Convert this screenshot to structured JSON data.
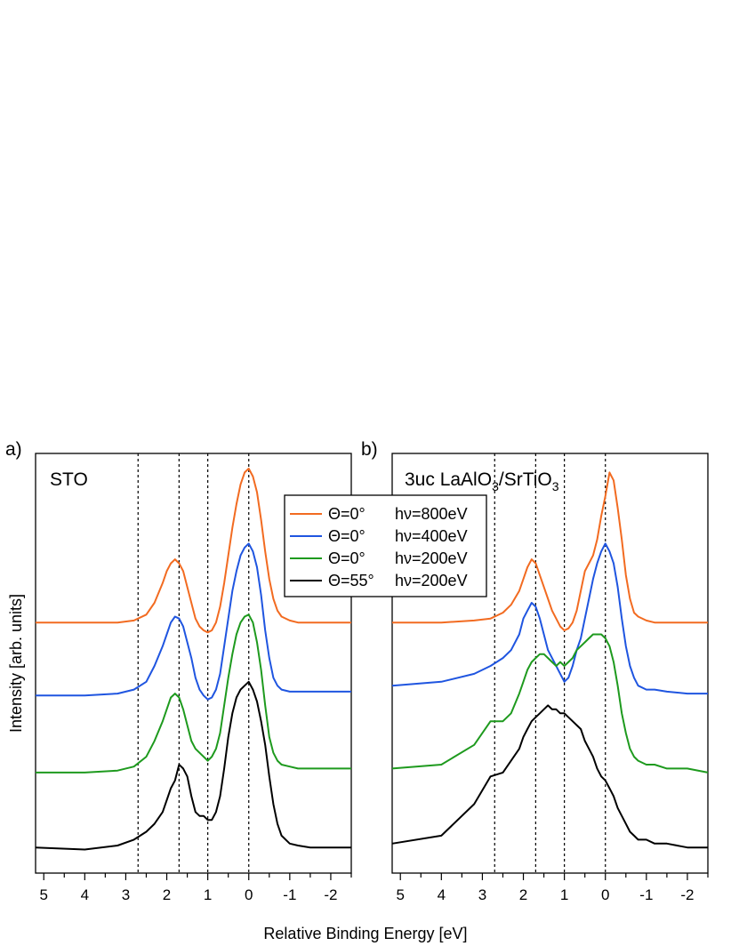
{
  "chart_data": [
    {
      "type": "line",
      "panel_letter": "a)",
      "title": "STO",
      "xlabel": "Relative Binding Energy [eV]",
      "ylabel": "Intensity [arb. units]",
      "xlim": [
        5.2,
        -2.5
      ],
      "x_reversed": true,
      "xticks": [
        5,
        4,
        3,
        2,
        1,
        0,
        -1,
        -2
      ],
      "xtick_labels": [
        "5",
        "4",
        "3",
        "2",
        "1",
        "0",
        "-1",
        "-2"
      ],
      "ylim": [
        0,
        1.0
      ],
      "yticks_shown": false,
      "vlines": [
        2.7,
        1.7,
        1.0,
        0.0
      ],
      "series": [
        {
          "name": "Θ=0°   hν=800eV",
          "color": "#F26B21",
          "x": [
            5.2,
            4.0,
            3.2,
            2.8,
            2.5,
            2.3,
            2.1,
            2.0,
            1.9,
            1.8,
            1.7,
            1.6,
            1.5,
            1.4,
            1.3,
            1.2,
            1.1,
            1.0,
            0.9,
            0.8,
            0.7,
            0.6,
            0.5,
            0.4,
            0.3,
            0.2,
            0.1,
            0.0,
            -0.1,
            -0.2,
            -0.3,
            -0.4,
            -0.5,
            -0.6,
            -0.7,
            -0.8,
            -1.0,
            -1.2,
            -1.5,
            -2.0,
            -2.5
          ],
          "y": [
            0.61,
            0.61,
            0.61,
            0.615,
            0.63,
            0.66,
            0.71,
            0.74,
            0.76,
            0.77,
            0.76,
            0.74,
            0.7,
            0.66,
            0.62,
            0.6,
            0.59,
            0.585,
            0.59,
            0.61,
            0.65,
            0.71,
            0.78,
            0.85,
            0.91,
            0.96,
            0.99,
            1.0,
            0.98,
            0.94,
            0.87,
            0.79,
            0.72,
            0.67,
            0.64,
            0.625,
            0.615,
            0.61,
            0.61,
            0.61,
            0.61
          ]
        },
        {
          "name": "Θ=0°   hν=400eV",
          "color": "#1F55E0",
          "x": [
            5.2,
            4.0,
            3.2,
            2.8,
            2.5,
            2.3,
            2.1,
            2.0,
            1.9,
            1.8,
            1.7,
            1.6,
            1.5,
            1.4,
            1.3,
            1.2,
            1.1,
            1.0,
            0.9,
            0.8,
            0.7,
            0.6,
            0.5,
            0.4,
            0.3,
            0.2,
            0.1,
            0.0,
            -0.1,
            -0.2,
            -0.3,
            -0.4,
            -0.5,
            -0.6,
            -0.7,
            -0.8,
            -1.0,
            -1.2,
            -1.5,
            -2.0,
            -2.5
          ],
          "y": [
            0.425,
            0.425,
            0.43,
            0.44,
            0.46,
            0.5,
            0.55,
            0.58,
            0.61,
            0.625,
            0.62,
            0.6,
            0.56,
            0.52,
            0.47,
            0.44,
            0.425,
            0.415,
            0.42,
            0.44,
            0.48,
            0.55,
            0.62,
            0.69,
            0.74,
            0.78,
            0.8,
            0.81,
            0.79,
            0.75,
            0.68,
            0.59,
            0.52,
            0.47,
            0.45,
            0.44,
            0.435,
            0.435,
            0.435,
            0.435,
            0.435
          ]
        },
        {
          "name": "Θ=0°   hν=200eV",
          "color": "#1E9A1E",
          "x": [
            5.2,
            4.0,
            3.2,
            2.8,
            2.5,
            2.3,
            2.1,
            2.0,
            1.9,
            1.8,
            1.7,
            1.6,
            1.5,
            1.4,
            1.3,
            1.2,
            1.1,
            1.0,
            0.9,
            0.8,
            0.7,
            0.6,
            0.5,
            0.4,
            0.3,
            0.2,
            0.1,
            0.0,
            -0.1,
            -0.2,
            -0.3,
            -0.4,
            -0.5,
            -0.6,
            -0.7,
            -0.8,
            -1.0,
            -1.2,
            -1.5,
            -2.0,
            -2.5
          ],
          "y": [
            0.23,
            0.23,
            0.235,
            0.245,
            0.27,
            0.31,
            0.36,
            0.39,
            0.42,
            0.43,
            0.42,
            0.39,
            0.35,
            0.31,
            0.29,
            0.28,
            0.27,
            0.26,
            0.27,
            0.29,
            0.33,
            0.4,
            0.47,
            0.53,
            0.58,
            0.61,
            0.625,
            0.63,
            0.61,
            0.56,
            0.49,
            0.4,
            0.32,
            0.28,
            0.26,
            0.25,
            0.245,
            0.24,
            0.24,
            0.24,
            0.24
          ]
        },
        {
          "name": "Θ=55° hν=200eV",
          "color": "#000000",
          "x": [
            5.2,
            4.0,
            3.2,
            2.8,
            2.5,
            2.3,
            2.1,
            2.0,
            1.9,
            1.8,
            1.7,
            1.6,
            1.5,
            1.4,
            1.3,
            1.2,
            1.1,
            1.0,
            0.9,
            0.8,
            0.7,
            0.6,
            0.5,
            0.4,
            0.3,
            0.2,
            0.1,
            0.0,
            -0.1,
            -0.2,
            -0.3,
            -0.4,
            -0.5,
            -0.6,
            -0.7,
            -0.8,
            -1.0,
            -1.2,
            -1.5,
            -2.0,
            -2.5
          ],
          "y": [
            0.04,
            0.035,
            0.045,
            0.06,
            0.08,
            0.1,
            0.13,
            0.16,
            0.19,
            0.21,
            0.25,
            0.24,
            0.22,
            0.17,
            0.13,
            0.12,
            0.12,
            0.11,
            0.11,
            0.13,
            0.17,
            0.24,
            0.32,
            0.38,
            0.42,
            0.44,
            0.45,
            0.46,
            0.44,
            0.41,
            0.36,
            0.3,
            0.22,
            0.15,
            0.1,
            0.07,
            0.05,
            0.045,
            0.04,
            0.04,
            0.04
          ]
        }
      ]
    },
    {
      "type": "line",
      "panel_letter": "b)",
      "title_parts": [
        "3uc LaAlO",
        "3",
        "/SrTiO",
        "3"
      ],
      "xlabel": "Relative Binding Energy [eV]",
      "xlim": [
        5.2,
        -2.5
      ],
      "x_reversed": true,
      "xticks": [
        5,
        4,
        3,
        2,
        1,
        0,
        -1,
        -2
      ],
      "xtick_labels": [
        "5",
        "4",
        "3",
        "2",
        "1",
        "0",
        "-1",
        "-2"
      ],
      "ylim": [
        0,
        1.0
      ],
      "yticks_shown": false,
      "vlines": [
        2.7,
        1.7,
        1.0,
        0.0
      ],
      "series": [
        {
          "name": "Θ=0°   hν=800eV",
          "color": "#F26B21",
          "x": [
            5.2,
            4.0,
            3.2,
            2.8,
            2.5,
            2.3,
            2.1,
            2.0,
            1.9,
            1.8,
            1.7,
            1.6,
            1.5,
            1.4,
            1.3,
            1.2,
            1.1,
            1.0,
            0.9,
            0.8,
            0.7,
            0.6,
            0.5,
            0.4,
            0.3,
            0.2,
            0.1,
            0.0,
            -0.1,
            -0.2,
            -0.3,
            -0.4,
            -0.5,
            -0.6,
            -0.7,
            -0.8,
            -1.0,
            -1.2,
            -1.5,
            -2.0,
            -2.5
          ],
          "y": [
            0.61,
            0.61,
            0.615,
            0.62,
            0.635,
            0.655,
            0.69,
            0.72,
            0.75,
            0.77,
            0.76,
            0.73,
            0.7,
            0.67,
            0.64,
            0.62,
            0.6,
            0.59,
            0.595,
            0.61,
            0.64,
            0.69,
            0.74,
            0.76,
            0.78,
            0.82,
            0.88,
            0.93,
            0.99,
            0.97,
            0.9,
            0.82,
            0.73,
            0.67,
            0.635,
            0.625,
            0.615,
            0.61,
            0.61,
            0.61,
            0.61
          ]
        },
        {
          "name": "Θ=0°   hν=400eV",
          "color": "#1F55E0",
          "x": [
            5.2,
            4.0,
            3.2,
            2.8,
            2.5,
            2.3,
            2.1,
            2.0,
            1.9,
            1.8,
            1.7,
            1.6,
            1.5,
            1.4,
            1.3,
            1.2,
            1.1,
            1.0,
            0.9,
            0.8,
            0.7,
            0.6,
            0.5,
            0.4,
            0.3,
            0.2,
            0.1,
            0.0,
            -0.1,
            -0.2,
            -0.3,
            -0.4,
            -0.5,
            -0.6,
            -0.7,
            -0.8,
            -1.0,
            -1.2,
            -1.5,
            -2.0,
            -2.5
          ],
          "y": [
            0.45,
            0.46,
            0.48,
            0.5,
            0.52,
            0.54,
            0.58,
            0.62,
            0.64,
            0.66,
            0.65,
            0.62,
            0.58,
            0.54,
            0.52,
            0.5,
            0.48,
            0.46,
            0.47,
            0.5,
            0.54,
            0.57,
            0.62,
            0.67,
            0.72,
            0.76,
            0.79,
            0.81,
            0.79,
            0.76,
            0.7,
            0.62,
            0.55,
            0.5,
            0.47,
            0.45,
            0.44,
            0.44,
            0.435,
            0.43,
            0.43
          ]
        },
        {
          "name": "Θ=0°   hν=200eV",
          "color": "#1E9A1E",
          "x": [
            5.2,
            4.0,
            3.2,
            2.8,
            2.5,
            2.3,
            2.1,
            2.0,
            1.9,
            1.8,
            1.7,
            1.6,
            1.5,
            1.4,
            1.3,
            1.2,
            1.1,
            1.0,
            0.9,
            0.8,
            0.7,
            0.6,
            0.5,
            0.4,
            0.3,
            0.2,
            0.1,
            0.0,
            -0.1,
            -0.2,
            -0.3,
            -0.4,
            -0.5,
            -0.6,
            -0.7,
            -0.8,
            -1.0,
            -1.2,
            -1.5,
            -2.0,
            -2.5
          ],
          "y": [
            0.24,
            0.25,
            0.3,
            0.36,
            0.36,
            0.38,
            0.43,
            0.46,
            0.49,
            0.51,
            0.52,
            0.53,
            0.53,
            0.52,
            0.51,
            0.5,
            0.51,
            0.5,
            0.51,
            0.52,
            0.54,
            0.55,
            0.56,
            0.57,
            0.58,
            0.58,
            0.58,
            0.57,
            0.55,
            0.51,
            0.45,
            0.38,
            0.33,
            0.29,
            0.27,
            0.26,
            0.25,
            0.25,
            0.24,
            0.24,
            0.23
          ]
        },
        {
          "name": "Θ=55° hν=200eV",
          "color": "#000000",
          "x": [
            5.2,
            4.0,
            3.2,
            2.8,
            2.5,
            2.3,
            2.1,
            2.0,
            1.9,
            1.8,
            1.7,
            1.6,
            1.5,
            1.4,
            1.3,
            1.2,
            1.1,
            1.0,
            0.9,
            0.8,
            0.7,
            0.6,
            0.5,
            0.4,
            0.3,
            0.2,
            0.1,
            0.0,
            -0.1,
            -0.2,
            -0.3,
            -0.4,
            -0.5,
            -0.6,
            -0.7,
            -0.8,
            -1.0,
            -1.2,
            -1.5,
            -2.0,
            -2.5
          ],
          "y": [
            0.05,
            0.07,
            0.15,
            0.22,
            0.23,
            0.26,
            0.29,
            0.32,
            0.34,
            0.36,
            0.37,
            0.38,
            0.39,
            0.4,
            0.39,
            0.39,
            0.38,
            0.38,
            0.37,
            0.36,
            0.35,
            0.34,
            0.31,
            0.29,
            0.27,
            0.24,
            0.22,
            0.21,
            0.19,
            0.17,
            0.14,
            0.12,
            0.1,
            0.08,
            0.07,
            0.06,
            0.06,
            0.05,
            0.05,
            0.04,
            0.04
          ]
        }
      ]
    }
  ],
  "legend": {
    "placement": "top-center",
    "entries": [
      {
        "theta": "Θ=0°",
        "energy": "hν=800eV",
        "color": "#F26B21"
      },
      {
        "theta": "Θ=0°",
        "energy": "hν=400eV",
        "color": "#1F55E0"
      },
      {
        "theta": "Θ=0°",
        "energy": "hν=200eV",
        "color": "#1E9A1E"
      },
      {
        "theta": "Θ=55°",
        "energy": "hν=200eV",
        "color": "#000000"
      }
    ]
  }
}
